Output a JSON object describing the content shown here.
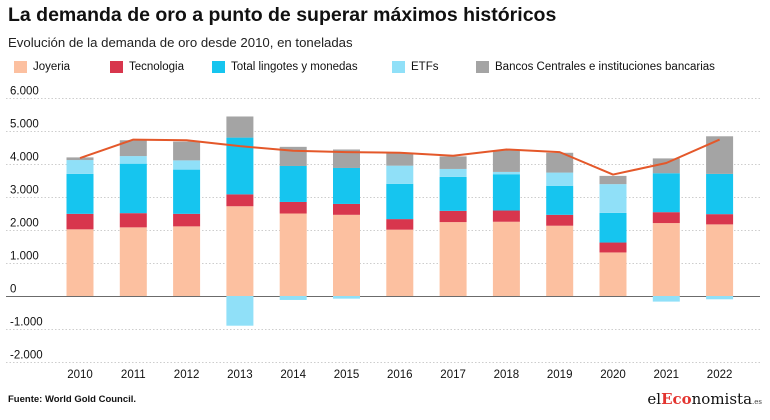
{
  "header": {
    "title": "La demanda de oro a punto de superar máximos históricos",
    "subtitle": "Evolución de la demanda de oro desde 2010, en toneladas"
  },
  "footer": {
    "source": "Fuente: World Gold Council.",
    "logo": {
      "prefix": "el",
      "accent": "Eco",
      "suffix": "nomista",
      "tld": ".es"
    }
  },
  "colors": {
    "joyeria": "#fcc0a0",
    "tecnologia": "#d8364d",
    "lingotes": "#16c5ef",
    "etfs": "#90e0f8",
    "bancos": "#a4a4a4",
    "line": "#e4582a",
    "grid": "#bdbdbd"
  },
  "chart_data": {
    "type": "bar",
    "stacked": true,
    "title": "La demanda de oro a punto de superar máximos históricos",
    "subtitle": "Evolución de la demanda de oro desde 2010, en toneladas",
    "categories": [
      "2010",
      "2011",
      "2012",
      "2013",
      "2014",
      "2015",
      "2016",
      "2017",
      "2018",
      "2019",
      "2020",
      "2021",
      "2022"
    ],
    "ylim": [
      -2000,
      6000
    ],
    "yticks": [
      -2000,
      -1000,
      0,
      1000,
      2000,
      3000,
      4000,
      5000,
      6000
    ],
    "ytick_labels": [
      "-2.000",
      "-1.000",
      "0",
      "1.000",
      "2.000",
      "3.000",
      "4.000",
      "5.000",
      "6.000"
    ],
    "grid": true,
    "legend_position": "top",
    "series": [
      {
        "name": "Joyeria",
        "color_key": "joyeria",
        "values": [
          2020,
          2080,
          2110,
          2720,
          2500,
          2460,
          2010,
          2240,
          2250,
          2130,
          1320,
          2210,
          2170
        ]
      },
      {
        "name": "Tecnologia",
        "color_key": "tecnologia",
        "values": [
          470,
          430,
          380,
          360,
          350,
          330,
          320,
          340,
          340,
          330,
          300,
          330,
          310
        ]
      },
      {
        "name": "Total lingotes y monedas",
        "color_key": "lingotes",
        "values": [
          1210,
          1500,
          1340,
          1720,
          1090,
          1090,
          1070,
          1030,
          1100,
          880,
          900,
          1180,
          1220
        ]
      },
      {
        "name": "ETFs",
        "color_key": "etfs",
        "values": [
          420,
          230,
          280,
          -900,
          -120,
          -80,
          550,
          240,
          70,
          400,
          870,
          -170,
          -100
        ]
      },
      {
        "name": "Bancos Centrales e instituciones bancarias",
        "color_key": "bancos",
        "values": [
          80,
          480,
          570,
          640,
          580,
          560,
          390,
          380,
          650,
          600,
          250,
          450,
          1140
        ]
      }
    ],
    "total_line": {
      "color_key": "line",
      "values": [
        4180,
        4740,
        4720,
        4540,
        4400,
        4360,
        4340,
        4250,
        4440,
        4360,
        3680,
        4030,
        4740
      ]
    }
  }
}
